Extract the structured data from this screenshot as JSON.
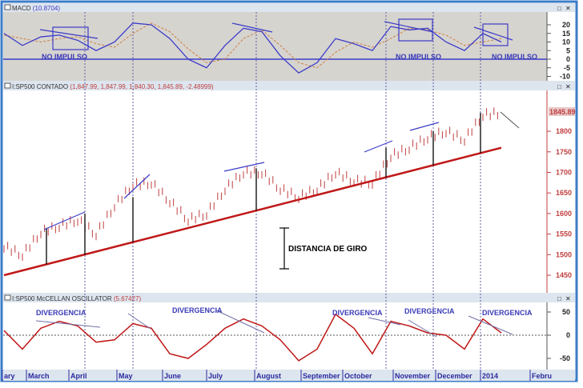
{
  "macd_panel": {
    "title": "MACD",
    "value": "(10.8704)",
    "labels": [
      "NO IMPULSO",
      "NO IMPULSO",
      "NO IMPULSO"
    ]
  },
  "price_panel": {
    "title": "I:SP500 CONTADO",
    "values": "(1,847.99, 1,847.99, 1,840.30, 1,845.89, -2.48999)",
    "last_price": "1845.89",
    "annotation": "DISTANCIA DE GIRO"
  },
  "osc_panel": {
    "title": "I:SP500 McCELLAN OSCILLATOR",
    "value": "(5.67427)",
    "labels": [
      "DIVERGENCIA",
      "DIVERGENCIA",
      "DIVERGENCIA",
      "DIVERGENCIA",
      "DIVERGENCIA"
    ]
  },
  "window_buttons": {
    "restore": "□",
    "close": "✕"
  },
  "colors": {
    "macd": "#3c3cc8",
    "signal": "#d08040",
    "price": "#c04040",
    "trend": "#c01818",
    "osc": "#c01818",
    "frame": "#3c7cc8"
  },
  "chart_data": [
    {
      "type": "line",
      "title": "MACD",
      "yticks": [
        20,
        15,
        10,
        5,
        0,
        -5,
        -10
      ],
      "ylim": [
        -12,
        25
      ],
      "series": [
        {
          "values": [
            15,
            8,
            13,
            14,
            11,
            5,
            10,
            21,
            20,
            12,
            0,
            -5,
            8,
            18,
            16,
            2,
            -8,
            -2,
            12,
            9,
            5,
            19,
            17,
            18,
            10,
            5,
            15,
            10
          ]
        },
        {
          "values": [
            14,
            12,
            10,
            12,
            13,
            9,
            7,
            15,
            21,
            16,
            6,
            -2,
            0,
            12,
            17,
            8,
            -2,
            -5,
            4,
            10,
            7,
            12,
            18,
            17,
            14,
            8,
            10,
            12
          ]
        }
      ]
    },
    {
      "type": "bar",
      "title": "I:SP500 CONTADO",
      "yticks": [
        1800,
        1750,
        1700,
        1650,
        1600,
        1550,
        1500,
        1450
      ],
      "ylim": [
        1425,
        1870
      ],
      "values": [
        1520,
        1500,
        1555,
        1570,
        1585,
        1550,
        1620,
        1670,
        1675,
        1630,
        1585,
        1600,
        1660,
        1700,
        1700,
        1660,
        1640,
        1660,
        1700,
        1680,
        1675,
        1740,
        1760,
        1785,
        1800,
        1780,
        1840,
        1845
      ],
      "trendline": [
        1450,
        1760
      ]
    },
    {
      "type": "line",
      "title": "I:SP500 McCELLAN OSCILLATOR",
      "yticks": [
        50,
        0,
        -50
      ],
      "ylim": [
        -70,
        70
      ],
      "values": [
        10,
        -30,
        15,
        30,
        20,
        -15,
        -10,
        25,
        15,
        -40,
        -50,
        -20,
        15,
        35,
        20,
        -10,
        -55,
        -30,
        45,
        15,
        -40,
        30,
        20,
        5,
        0,
        -30,
        35,
        5
      ],
      "x_tick_labels": [
        "ary",
        "March",
        "April",
        "May",
        "June",
        "July",
        "August",
        "September",
        "October",
        "November",
        "December",
        "2014",
        "Febru"
      ]
    }
  ]
}
